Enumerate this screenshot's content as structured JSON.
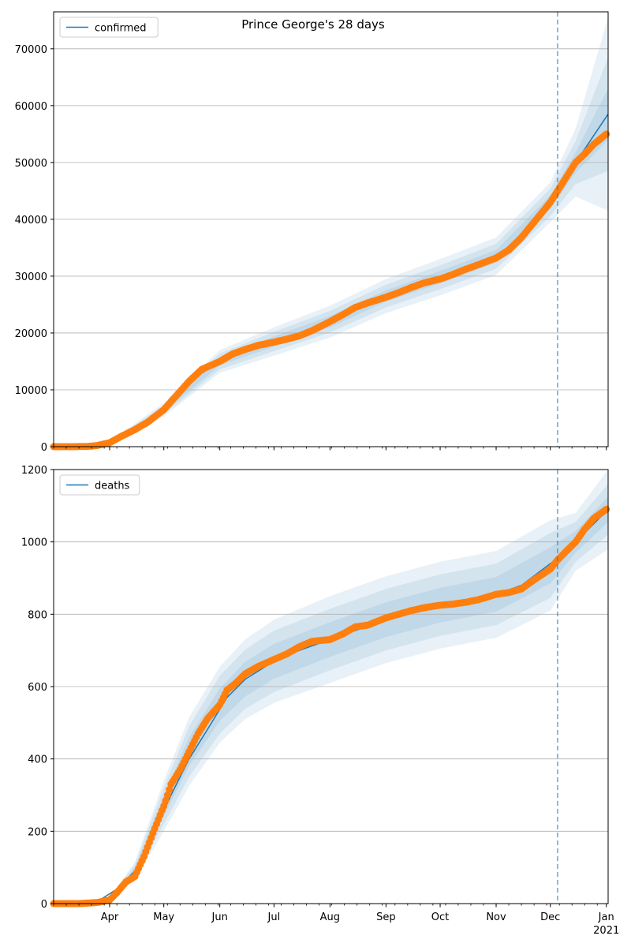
{
  "figure_title": "Prince George's 28 days",
  "chart_data": [
    {
      "type": "line",
      "title": "Prince George's 28 days",
      "xlabel": "",
      "ylabel": "",
      "ylim": [
        0,
        76500
      ],
      "xlim": [
        "2020-03-01",
        "2021-01-02"
      ],
      "yticks": [
        0,
        10000,
        20000,
        30000,
        40000,
        50000,
        60000,
        70000
      ],
      "ytick_labels": [
        "0",
        "10000",
        "20000",
        "30000",
        "40000",
        "50000",
        "60000",
        "70000"
      ],
      "xtick_labels": [
        "Apr",
        "May",
        "Jun",
        "Jul",
        "Aug",
        "Sep",
        "Oct",
        "Nov",
        "Dec",
        "Jan"
      ],
      "xtick_dates": [
        "2020-04-01",
        "2020-05-01",
        "2020-06-01",
        "2020-07-01",
        "2020-08-01",
        "2020-09-01",
        "2020-10-01",
        "2020-11-01",
        "2020-12-01",
        "2021-01-01"
      ],
      "year_label": "2021",
      "grid": "horizontal",
      "legend_position": "top-left",
      "forecast_date": "2020-12-05",
      "series": [
        {
          "name": "confirmed",
          "kind": "fit_line",
          "color": "#1f77b4",
          "x": [
            "2020-03-01",
            "2020-03-20",
            "2020-04-01",
            "2020-04-15",
            "2020-05-01",
            "2020-05-15",
            "2020-06-01",
            "2020-06-15",
            "2020-07-01",
            "2020-07-15",
            "2020-08-01",
            "2020-08-15",
            "2020-09-01",
            "2020-09-15",
            "2020-10-01",
            "2020-10-15",
            "2020-11-01",
            "2020-11-15",
            "2020-12-01",
            "2020-12-05",
            "2020-12-15",
            "2021-01-02"
          ],
          "y": [
            0,
            50,
            500,
            3000,
            6500,
            11500,
            15000,
            17000,
            18500,
            19800,
            22000,
            24500,
            26500,
            28200,
            29800,
            31500,
            33500,
            37000,
            43000,
            45000,
            50000,
            58500
          ]
        },
        {
          "kind": "observed_points",
          "color": "#ff7f0e",
          "x": [
            "2020-03-01",
            "2020-03-10",
            "2020-03-20",
            "2020-03-25",
            "2020-04-01",
            "2020-04-08",
            "2020-04-15",
            "2020-04-22",
            "2020-05-01",
            "2020-05-08",
            "2020-05-15",
            "2020-05-22",
            "2020-06-01",
            "2020-06-08",
            "2020-06-15",
            "2020-06-22",
            "2020-07-01",
            "2020-07-08",
            "2020-07-15",
            "2020-07-22",
            "2020-08-01",
            "2020-08-08",
            "2020-08-15",
            "2020-08-22",
            "2020-09-01",
            "2020-09-08",
            "2020-09-15",
            "2020-09-22",
            "2020-10-01",
            "2020-10-08",
            "2020-10-15",
            "2020-10-22",
            "2020-11-01",
            "2020-11-08",
            "2020-11-15",
            "2020-11-22",
            "2020-12-01",
            "2020-12-05",
            "2020-12-10",
            "2020-12-15",
            "2020-12-20",
            "2020-12-25",
            "2021-01-01"
          ],
          "y": [
            0,
            0,
            50,
            200,
            700,
            1900,
            3000,
            4300,
            6500,
            9000,
            11500,
            13600,
            15000,
            16300,
            17100,
            17800,
            18400,
            18900,
            19500,
            20400,
            22000,
            23200,
            24500,
            25300,
            26300,
            27100,
            28000,
            28800,
            29500,
            30300,
            31200,
            32000,
            33200,
            34600,
            36800,
            39500,
            43000,
            45000,
            47500,
            50000,
            51500,
            53200,
            55000
          ]
        }
      ],
      "bands": {
        "color": "#1f77b4",
        "x": [
          "2020-03-01",
          "2020-04-01",
          "2020-05-01",
          "2020-06-01",
          "2020-07-01",
          "2020-08-01",
          "2020-09-01",
          "2020-10-01",
          "2020-11-01",
          "2020-12-01",
          "2020-12-15",
          "2021-01-02"
        ],
        "center": [
          0,
          500,
          6500,
          15000,
          18500,
          22000,
          26500,
          29800,
          33500,
          43000,
          50000,
          58500
        ],
        "half_widths": [
          [
            0,
            400,
            1200,
            2000,
            2500,
            2800,
            3000,
            3200,
            3300,
            3500,
            6000,
            17000
          ],
          [
            0,
            250,
            800,
            1400,
            1700,
            1900,
            2000,
            2100,
            2200,
            2400,
            3800,
            10000
          ],
          [
            0,
            120,
            400,
            700,
            900,
            1000,
            1000,
            1100,
            1100,
            1200,
            1800,
            4500
          ]
        ]
      }
    },
    {
      "type": "line",
      "xlabel": "",
      "ylabel": "",
      "ylim": [
        0,
        1200
      ],
      "xlim": [
        "2020-03-01",
        "2021-01-02"
      ],
      "yticks": [
        0,
        200,
        400,
        600,
        800,
        1000,
        1200
      ],
      "ytick_labels": [
        "0",
        "200",
        "400",
        "600",
        "800",
        "1000",
        "1200"
      ],
      "xtick_labels": [
        "Apr",
        "May",
        "Jun",
        "Jul",
        "Aug",
        "Sep",
        "Oct",
        "Nov",
        "Dec",
        "Jan"
      ],
      "xtick_dates": [
        "2020-04-01",
        "2020-05-01",
        "2020-06-01",
        "2020-07-01",
        "2020-08-01",
        "2020-09-01",
        "2020-10-01",
        "2020-11-01",
        "2020-12-01",
        "2021-01-01"
      ],
      "year_label": "2021",
      "grid": "horizontal",
      "legend_position": "top-left",
      "forecast_date": "2020-12-05",
      "series": [
        {
          "name": "deaths",
          "kind": "fit_line",
          "color": "#1f77b4",
          "x": [
            "2020-03-01",
            "2020-03-25",
            "2020-04-05",
            "2020-04-15",
            "2020-04-25",
            "2020-05-05",
            "2020-05-15",
            "2020-05-25",
            "2020-06-05",
            "2020-06-15",
            "2020-07-01",
            "2020-07-15",
            "2020-08-01",
            "2020-08-15",
            "2020-09-01",
            "2020-09-15",
            "2020-10-01",
            "2020-10-15",
            "2020-11-01",
            "2020-11-15",
            "2020-12-01",
            "2020-12-05",
            "2020-12-15",
            "2021-01-02"
          ],
          "y": [
            0,
            5,
            40,
            90,
            190,
            300,
            400,
            480,
            570,
            620,
            670,
            700,
            730,
            755,
            785,
            805,
            825,
            835,
            855,
            880,
            940,
            955,
            1000,
            1090
          ]
        },
        {
          "kind": "observed_points",
          "color": "#ff7f0e",
          "x": [
            "2020-03-01",
            "2020-03-15",
            "2020-03-25",
            "2020-04-01",
            "2020-04-05",
            "2020-04-10",
            "2020-04-15",
            "2020-04-20",
            "2020-04-25",
            "2020-05-01",
            "2020-05-05",
            "2020-05-10",
            "2020-05-15",
            "2020-05-20",
            "2020-05-25",
            "2020-06-01",
            "2020-06-05",
            "2020-06-10",
            "2020-06-15",
            "2020-06-22",
            "2020-07-01",
            "2020-07-08",
            "2020-07-15",
            "2020-07-22",
            "2020-08-01",
            "2020-08-08",
            "2020-08-15",
            "2020-08-22",
            "2020-09-01",
            "2020-09-08",
            "2020-09-15",
            "2020-09-22",
            "2020-10-01",
            "2020-10-08",
            "2020-10-15",
            "2020-10-22",
            "2020-11-01",
            "2020-11-08",
            "2020-11-15",
            "2020-11-22",
            "2020-12-01",
            "2020-12-05",
            "2020-12-10",
            "2020-12-15",
            "2020-12-20",
            "2020-12-25",
            "2021-01-01"
          ],
          "y": [
            0,
            0,
            3,
            10,
            30,
            60,
            75,
            130,
            195,
            270,
            330,
            370,
            420,
            470,
            510,
            550,
            590,
            610,
            635,
            655,
            675,
            690,
            710,
            725,
            730,
            745,
            765,
            770,
            790,
            800,
            810,
            818,
            825,
            828,
            833,
            840,
            855,
            860,
            870,
            895,
            925,
            950,
            975,
            1000,
            1035,
            1065,
            1090
          ]
        }
      ],
      "bands": {
        "color": "#1f77b4",
        "x": [
          "2020-03-01",
          "2020-04-01",
          "2020-04-15",
          "2020-05-01",
          "2020-05-15",
          "2020-06-01",
          "2020-06-15",
          "2020-07-01",
          "2020-08-01",
          "2020-09-01",
          "2020-10-01",
          "2020-11-01",
          "2020-12-01",
          "2020-12-15",
          "2021-01-02"
        ],
        "center": [
          0,
          10,
          90,
          270,
          420,
          550,
          620,
          670,
          730,
          785,
          825,
          855,
          935,
          1000,
          1090
        ],
        "half_widths": [
          [
            0,
            5,
            25,
            70,
            95,
            105,
            110,
            115,
            120,
            120,
            120,
            120,
            125,
            80,
            110
          ],
          [
            0,
            4,
            18,
            50,
            70,
            80,
            82,
            85,
            85,
            85,
            85,
            85,
            90,
            55,
            70
          ],
          [
            0,
            2,
            10,
            28,
            40,
            45,
            48,
            48,
            48,
            48,
            48,
            48,
            50,
            30,
            35
          ]
        ]
      }
    }
  ]
}
